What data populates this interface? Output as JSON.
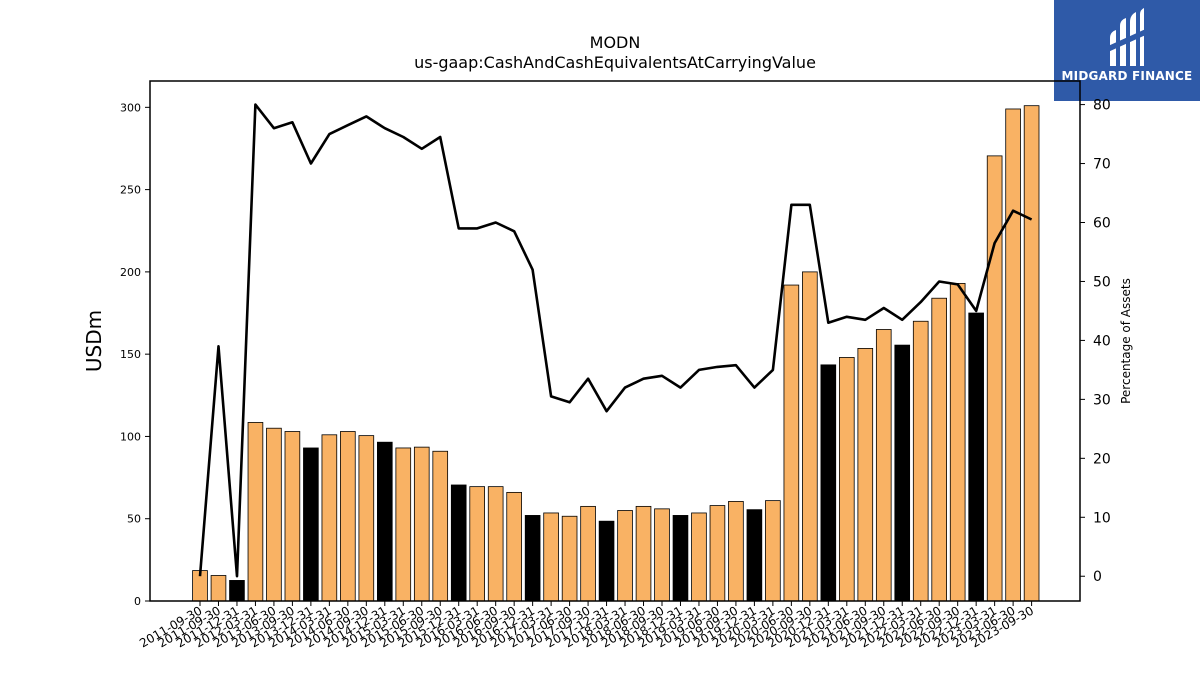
{
  "brand": {
    "name": "MIDGARD FINANCE",
    "logo_icon": "midgard-m-logo-icon",
    "bg_color": "#2f5aa8"
  },
  "chart_data": {
    "type": "bar",
    "title": "MODN",
    "subtitle": "us-gaap:CashAndCashEquivalentsAtCarryingValue",
    "ylabel": "USDm",
    "y2label": "Percentage of Assets",
    "ylim": [
      0,
      316
    ],
    "y2lim": [
      -4.2,
      84.0
    ],
    "yticks": [
      0,
      50,
      100,
      150,
      200,
      250,
      300
    ],
    "y2ticks": [
      0,
      10,
      20,
      30,
      40,
      50,
      60,
      70,
      80
    ],
    "categories": [
      "2011-09-30",
      "2011-09-30",
      "2011-12-31",
      "2012-03-31",
      "2013-06-30",
      "2013-09-30",
      "2013-12-31",
      "2014-03-31",
      "2014-06-30",
      "2014-09-30",
      "2014-12-31",
      "2015-03-31",
      "2015-06-30",
      "2015-09-30",
      "2015-12-31",
      "2016-03-31",
      "2016-06-30",
      "2016-09-30",
      "2016-12-31",
      "2017-03-31",
      "2017-06-30",
      "2017-09-30",
      "2017-12-31",
      "2018-03-31",
      "2018-06-30",
      "2018-09-30",
      "2018-12-31",
      "2019-03-31",
      "2019-06-30",
      "2019-09-30",
      "2019-12-31",
      "2020-03-31",
      "2020-06-30",
      "2020-09-30",
      "2020-12-31",
      "2021-03-31",
      "2021-06-30",
      "2021-09-30",
      "2021-12-31",
      "2022-03-31",
      "2022-06-30",
      "2022-09-30",
      "2022-12-31",
      "2023-03-31",
      "2023-06-30",
      "2023-09-30"
    ],
    "series": [
      {
        "kind": "bar",
        "values": [
          18.5,
          15.5,
          12.5,
          108.5,
          105,
          103,
          93,
          101,
          103,
          100.5,
          96.5,
          93,
          93.5,
          91,
          70.5,
          69.5,
          69.5,
          66,
          52,
          53.5,
          51.5,
          57.5,
          48.5,
          55,
          57.5,
          56,
          52,
          53.5,
          58,
          60.5,
          55.5,
          61,
          192,
          200,
          143.5,
          148,
          153.5,
          165,
          155.5,
          170,
          184,
          193,
          175,
          270.5,
          299,
          301
        ],
        "colors": [
          "#f9b264",
          "#f9b264",
          "#000000",
          "#f9b264",
          "#f9b264",
          "#f9b264",
          "#000000",
          "#f9b264",
          "#f9b264",
          "#f9b264",
          "#000000",
          "#f9b264",
          "#f9b264",
          "#f9b264",
          "#000000",
          "#f9b264",
          "#f9b264",
          "#f9b264",
          "#000000",
          "#f9b264",
          "#f9b264",
          "#f9b264",
          "#000000",
          "#f9b264",
          "#f9b264",
          "#f9b264",
          "#000000",
          "#f9b264",
          "#f9b264",
          "#f9b264",
          "#000000",
          "#f9b264",
          "#f9b264",
          "#f9b264",
          "#000000",
          "#f9b264",
          "#f9b264",
          "#f9b264",
          "#000000",
          "#f9b264",
          "#f9b264",
          "#f9b264",
          "#000000",
          "#f9b264",
          "#f9b264",
          "#f9b264"
        ]
      },
      {
        "kind": "line",
        "axis": "right",
        "color": "#000000",
        "values": [
          0,
          39,
          0,
          80,
          76,
          77,
          70,
          75,
          76.5,
          78,
          76,
          74.5,
          72.5,
          74.5,
          59,
          59,
          60,
          58.5,
          52,
          30.5,
          29.5,
          33.5,
          28,
          32,
          33.5,
          34,
          32,
          35,
          35.5,
          35.8,
          32,
          35,
          63,
          63,
          43,
          44,
          43.5,
          45.5,
          43.5,
          46.5,
          50,
          49.5,
          45,
          56.5,
          62,
          60.5
        ]
      }
    ],
    "grid": false,
    "legend": "none"
  }
}
